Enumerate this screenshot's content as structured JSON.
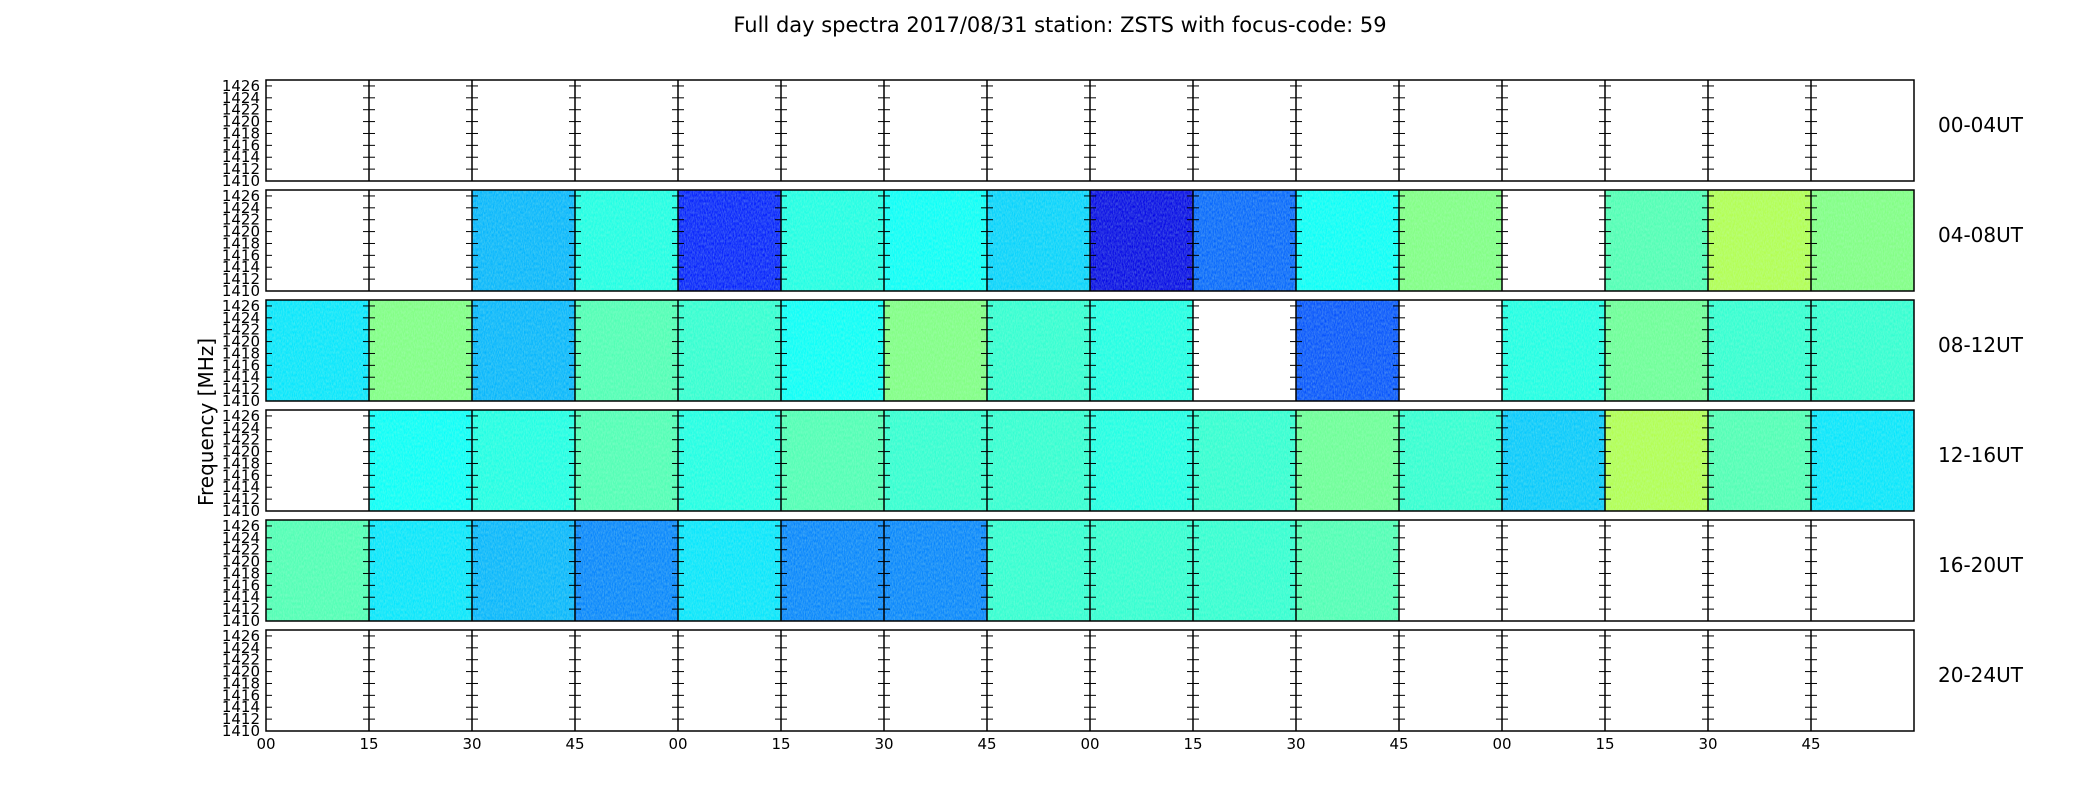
{
  "chart_data": {
    "type": "heatmap",
    "title": "Full day spectra 2017/08/31 station: ZSTS with focus-code: 59",
    "ylabel": "Frequency [MHz]",
    "xlabel": "",
    "ylim": [
      1410,
      1427
    ],
    "y_ticks": [
      "1410",
      "1412",
      "1414",
      "1416",
      "1418",
      "1420",
      "1422",
      "1424",
      "1426"
    ],
    "x_ticks": [
      "00",
      "15",
      "30",
      "45",
      "00",
      "15",
      "30",
      "45",
      "00",
      "15",
      "30",
      "45",
      "00",
      "15",
      "30",
      "45"
    ],
    "rows": [
      {
        "label": "00-04UT",
        "panels": [
          0,
          0,
          0,
          0,
          0,
          0,
          0,
          0,
          0,
          0,
          0,
          0,
          0,
          0,
          0,
          0
        ]
      },
      {
        "label": "04-08UT",
        "panels": [
          0,
          0,
          0.3,
          0.4,
          0.15,
          0.4,
          0.38,
          0.33,
          0.1,
          0.22,
          0.38,
          0.5,
          0,
          0.45,
          0.55,
          0.5
        ]
      },
      {
        "label": "08-12UT",
        "panels": [
          0.35,
          0.5,
          0.3,
          0.45,
          0.42,
          0.38,
          0.5,
          0.42,
          0.4,
          0,
          0.2,
          0,
          0.4,
          0.48,
          0.42,
          0.42
        ]
      },
      {
        "label": "12-16UT",
        "panels": [
          0,
          0.38,
          0.4,
          0.45,
          0.4,
          0.45,
          0.42,
          0.42,
          0.4,
          0.42,
          0.48,
          0.42,
          0.32,
          0.55,
          0.45,
          0.35
        ]
      },
      {
        "label": "16-20UT",
        "panels": [
          0.45,
          0.35,
          0.3,
          0.25,
          0.35,
          0.25,
          0.25,
          0.42,
          0.42,
          0.42,
          0.45,
          0,
          0,
          0,
          0,
          0
        ]
      },
      {
        "label": "20-24UT",
        "panels": [
          0,
          0,
          0,
          0,
          0,
          0,
          0,
          0,
          0,
          0,
          0,
          0,
          0,
          0,
          0,
          0
        ]
      }
    ],
    "colormap": "jet",
    "colors": {
      "low": "#000080",
      "mid": "#0080ff",
      "high": "#ffff00",
      "axis": "#000000",
      "background": "#ffffff"
    },
    "grid": false,
    "legend": "none"
  }
}
